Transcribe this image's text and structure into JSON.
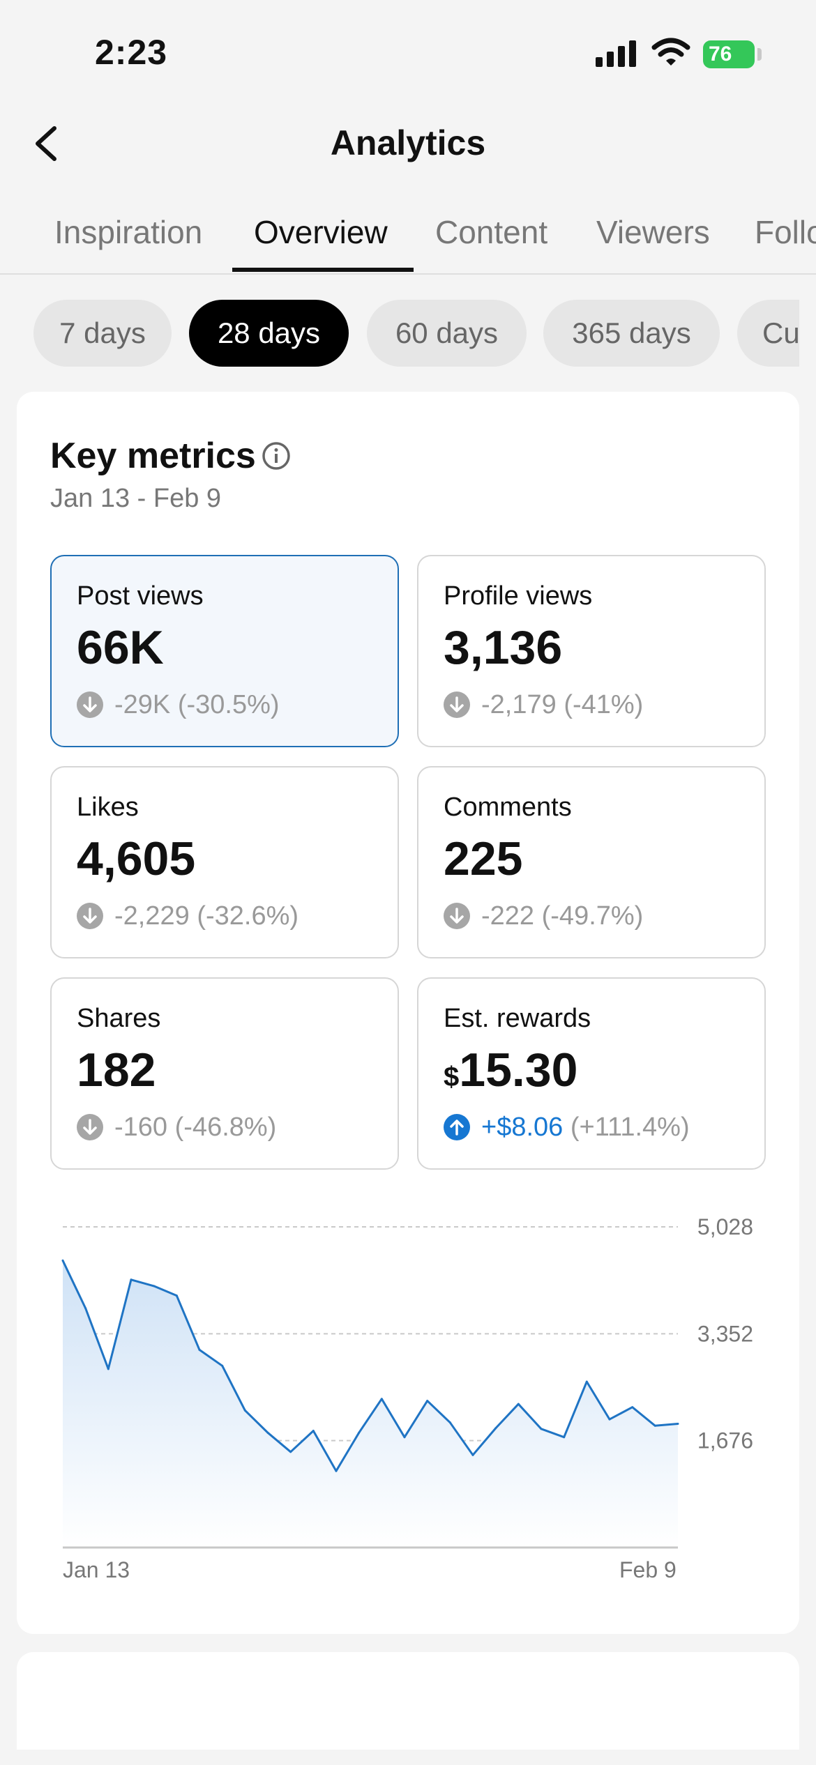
{
  "status_bar": {
    "time": "2:23",
    "battery": "76"
  },
  "header": {
    "title": "Analytics"
  },
  "tabs": [
    {
      "label": "Inspiration"
    },
    {
      "label": "Overview"
    },
    {
      "label": "Content"
    },
    {
      "label": "Viewers"
    },
    {
      "label": "Follo"
    }
  ],
  "periods": [
    {
      "label": "7 days"
    },
    {
      "label": "28 days"
    },
    {
      "label": "60 days"
    },
    {
      "label": "365 days"
    },
    {
      "label": "Cu"
    }
  ],
  "key_metrics": {
    "title": "Key metrics",
    "date_range": "Jan 13 - Feb 9",
    "tiles": [
      {
        "label": "Post views",
        "value": "66K",
        "delta": "-29K",
        "pct": "(-30.5%)",
        "direction": "down"
      },
      {
        "label": "Profile views",
        "value": "3,136",
        "delta": "-2,179",
        "pct": "(-41%)",
        "direction": "down"
      },
      {
        "label": "Likes",
        "value": "4,605",
        "delta": "-2,229",
        "pct": "(-32.6%)",
        "direction": "down"
      },
      {
        "label": "Comments",
        "value": "225",
        "delta": "-222",
        "pct": "(-49.7%)",
        "direction": "down"
      },
      {
        "label": "Shares",
        "value": "182",
        "delta": "-160",
        "pct": "(-46.8%)",
        "direction": "down"
      },
      {
        "label": "Est. rewards",
        "currency": "$",
        "value": "15.30",
        "delta": "+$8.06",
        "pct": "(+111.4%)",
        "direction": "up"
      }
    ]
  },
  "colors": {
    "accent": "#1677d2",
    "line": "#1f74c4",
    "selected_border": "#1f6fb5"
  },
  "chart_data": {
    "type": "area",
    "x_start_label": "Jan 13",
    "x_end_label": "Feb 9",
    "y_ticks": [
      "5,028",
      "3,352",
      "1,676"
    ],
    "y_tick_values": [
      5028,
      3352,
      1676
    ],
    "ylim": [
      0,
      5028
    ],
    "grid": true,
    "series": [
      {
        "values": [
          4500,
          3750,
          2800,
          4200,
          4100,
          3950,
          3100,
          2850,
          2150,
          1800,
          1500,
          1830,
          1200,
          1800,
          2330,
          1730,
          2300,
          1960,
          1450,
          1870,
          2250,
          1860,
          1730,
          2600,
          2010,
          2200,
          1910,
          1940
        ]
      }
    ]
  }
}
